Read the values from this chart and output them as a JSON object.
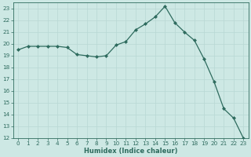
{
  "x": [
    0,
    1,
    2,
    3,
    4,
    5,
    6,
    7,
    8,
    9,
    10,
    11,
    12,
    13,
    14,
    15,
    16,
    17,
    18,
    19,
    20,
    21,
    22,
    23
  ],
  "y": [
    19.5,
    19.8,
    19.8,
    19.8,
    19.8,
    19.7,
    19.1,
    19.0,
    18.9,
    19.0,
    19.9,
    20.2,
    21.2,
    21.7,
    22.3,
    23.2,
    21.8,
    21.0,
    20.3,
    18.7,
    16.8,
    14.5,
    13.7,
    12.0
  ],
  "line_color": "#2e6b5e",
  "marker": "D",
  "marker_size": 2.0,
  "xlabel": "Humidex (Indice chaleur)",
  "bg_color": "#cde8e4",
  "grid_color": "#b8d8d4",
  "ylim": [
    12,
    23.5
  ],
  "xlim": [
    -0.5,
    23.5
  ],
  "yticks": [
    12,
    13,
    14,
    15,
    16,
    17,
    18,
    19,
    20,
    21,
    22,
    23
  ],
  "xticks": [
    0,
    1,
    2,
    3,
    4,
    5,
    6,
    7,
    8,
    9,
    10,
    11,
    12,
    13,
    14,
    15,
    16,
    17,
    18,
    19,
    20,
    21,
    22,
    23
  ],
  "tick_fontsize": 5.2,
  "xlabel_fontsize": 6.0,
  "linewidth": 0.9
}
